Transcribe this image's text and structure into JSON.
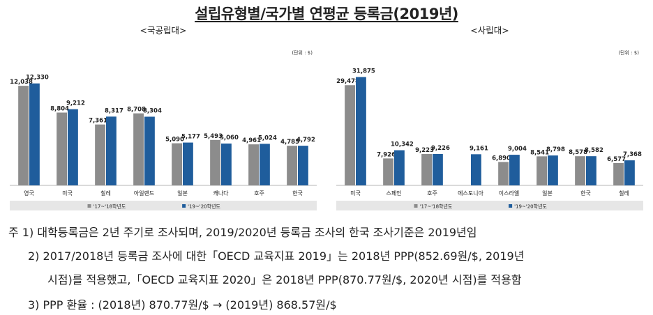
{
  "page_title": "설립유형별/국가별 연평균 등록금(2019년)",
  "colors": {
    "series_a": "#8c8c8c",
    "series_b": "#1f5d9c",
    "axis": "#b4b4b4",
    "legend_bg": "#e6e6e6"
  },
  "chart_data": [
    {
      "type": "bar",
      "title": "<국공립대>",
      "unit_label": "(단위 : $)",
      "categories": [
        "영국",
        "미국",
        "칠레",
        "아일랜드",
        "일본",
        "캐나다",
        "호주",
        "한국"
      ],
      "series": [
        {
          "name": "'17~'18학년도",
          "values": [
            12038,
            8804,
            7361,
            8708,
            5090,
            5493,
            4961,
            4785
          ],
          "labels": [
            "12,038",
            "8,804",
            "7,361",
            "8,708",
            "5,090",
            "5,493",
            "4,961",
            "4,785"
          ]
        },
        {
          "name": "'19~'20학년도",
          "values": [
            12330,
            9212,
            8317,
            8304,
            5177,
            5060,
            5024,
            4792
          ],
          "labels": [
            "12,330",
            "9,212",
            "8,317",
            "8,304",
            "5,177",
            "5,060",
            "5,024",
            "4,792"
          ]
        }
      ],
      "ylim": [
        0,
        15000
      ],
      "grid": false,
      "legend_position": "bottom"
    },
    {
      "type": "bar",
      "title": "<사립대>",
      "unit_label": "(단위 : $)",
      "categories": [
        "미국",
        "스페인",
        "호주",
        "에스토니아",
        "이스라엘",
        "일본",
        "한국",
        "칠레"
      ],
      "series": [
        {
          "name": "'17~'18학년도",
          "values": [
            29478,
            7926,
            9223,
            null,
            6890,
            8541,
            8578,
            6577
          ],
          "labels": [
            "29,478",
            "7,926",
            "9,223",
            "",
            "6,890",
            "8,541",
            "8,578",
            "6,577"
          ]
        },
        {
          "name": "'19~'20학년도",
          "values": [
            31875,
            10342,
            9226,
            9161,
            9004,
            8798,
            8582,
            7368
          ],
          "labels": [
            "31,875",
            "10,342",
            "9,226",
            "9,161",
            "9,004",
            "8,798",
            "8,582",
            "7,368"
          ]
        }
      ],
      "ylim": [
        0,
        36500
      ],
      "grid": false,
      "legend_position": "bottom"
    }
  ],
  "notes": [
    "주 1) 대학등록금은 2년 주기로 조사되며, 2019/2020년 등록금 조사의 한국 조사기준은 2019년임",
    "2) 2017/2018년 등록금 조사에 대한「OECD 교육지표 2019」는 2018년 PPP(852.69원/$, 2019년",
    "시점)를 적용했고,「OECD 교육지표 2020」은 2018년 PPP(870.77원/$, 2020년 시점)를 적용함",
    "3) PPP 환율 : (2018년) 870.77원/$ → (2019년) 868.57원/$"
  ]
}
